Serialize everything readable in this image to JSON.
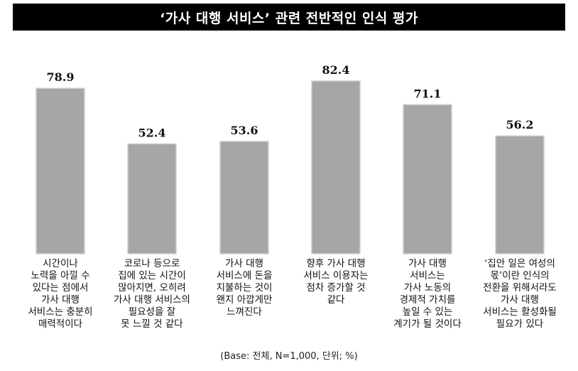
{
  "chart_data": {
    "type": "bar",
    "title": "‘가사 대행 서비스’ 관련 전반적인 인식 평가",
    "categories": [
      "시간이나\n노력을 아낄 수\n있다는 점에서\n가사 대행\n서비스는 충분히\n매력적이다",
      "코로나 등으로\n집에 있는 시간이\n많아지면, 오히려\n가사 대행 서비스의\n필요성을 잘\n못 느낄 것 같다",
      "가사 대행\n서비스에 돈을\n지불하는 것이\n왠지 아깝게만\n느껴진다",
      "향후 가사 대행\n서비스 이용자는\n점차 증가할 것\n같다",
      "가사 대행\n서비스는\n가사 노동의\n경제적 가치를\n높일 수 있는\n계기가 될 것이다",
      "‘집안 일은 여성의\n몫’이란 인식의\n전환을 위해서라도\n가사 대행\n서비스는 활성화될\n필요가 있다"
    ],
    "values": [
      78.9,
      52.4,
      53.6,
      82.4,
      71.1,
      56.2
    ],
    "value_labels": [
      "78.9",
      "52.4",
      "53.6",
      "82.4",
      "71.1",
      "56.2"
    ],
    "bar_color": "#a6a6a6",
    "bar_border_color": "#cfcfcf",
    "grid": false,
    "legend": "none"
  },
  "source_note": "(Base: 전체, N=1,000, 단위; %)"
}
